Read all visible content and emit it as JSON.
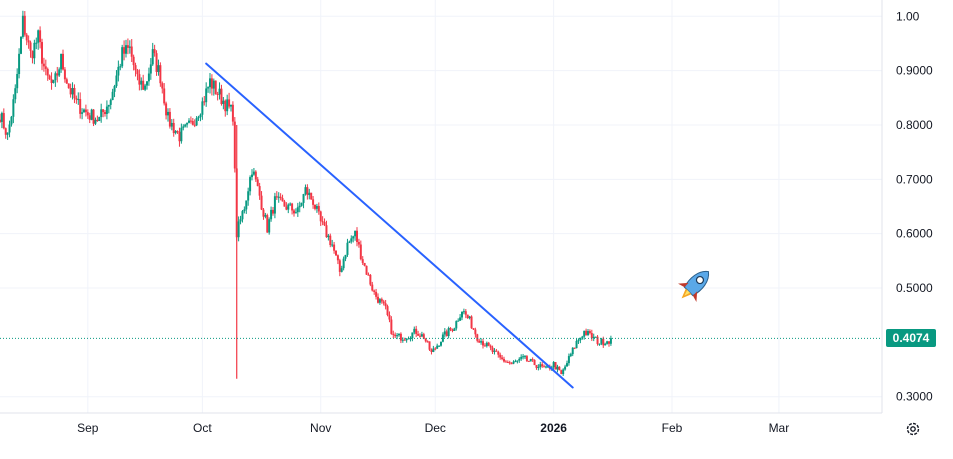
{
  "chart_data": {
    "type": "candlestick",
    "title": "",
    "y_ticks": [
      "1.00",
      "0.9000",
      "0.8000",
      "0.7000",
      "0.6000",
      "0.5000",
      "0.3000"
    ],
    "y_tick_values": [
      1.0,
      0.9,
      0.8,
      0.7,
      0.6,
      0.5,
      0.3
    ],
    "ylim": [
      0.27,
      1.03
    ],
    "x_ticks": [
      "Sep",
      "Oct",
      "Nov",
      "Dec",
      "2026",
      "Feb",
      "Mar"
    ],
    "x_tick_days": [
      31,
      61,
      92,
      122,
      153,
      184,
      212
    ],
    "xlim_days": [
      8,
      239
    ],
    "last_price": 0.4074,
    "last_price_label": "0.4074",
    "trendline": {
      "start": {
        "day": 62,
        "value": 0.913
      },
      "end": {
        "day": 158,
        "value": 0.317
      }
    },
    "key_points": [
      [
        8,
        0.82
      ],
      [
        10,
        0.78
      ],
      [
        12,
        0.86
      ],
      [
        14,
        0.99
      ],
      [
        16,
        0.93
      ],
      [
        18,
        0.96
      ],
      [
        20,
        0.89
      ],
      [
        22,
        0.87
      ],
      [
        24,
        0.92
      ],
      [
        26,
        0.87
      ],
      [
        28,
        0.84
      ],
      [
        31,
        0.82
      ],
      [
        34,
        0.81
      ],
      [
        37,
        0.85
      ],
      [
        40,
        0.93
      ],
      [
        42,
        0.94
      ],
      [
        44,
        0.88
      ],
      [
        46,
        0.87
      ],
      [
        48,
        0.93
      ],
      [
        50,
        0.89
      ],
      [
        52,
        0.81
      ],
      [
        55,
        0.78
      ],
      [
        58,
        0.8
      ],
      [
        61,
        0.84
      ],
      [
        63,
        0.88
      ],
      [
        65,
        0.86
      ],
      [
        67,
        0.84
      ],
      [
        69,
        0.82
      ],
      [
        70,
        0.6
      ],
      [
        72,
        0.65
      ],
      [
        74,
        0.72
      ],
      [
        76,
        0.67
      ],
      [
        78,
        0.61
      ],
      [
        80,
        0.66
      ],
      [
        83,
        0.65
      ],
      [
        86,
        0.64
      ],
      [
        88,
        0.68
      ],
      [
        90,
        0.66
      ],
      [
        92,
        0.62
      ],
      [
        95,
        0.58
      ],
      [
        97,
        0.53
      ],
      [
        99,
        0.58
      ],
      [
        101,
        0.6
      ],
      [
        103,
        0.55
      ],
      [
        106,
        0.49
      ],
      [
        109,
        0.46
      ],
      [
        111,
        0.41
      ],
      [
        114,
        0.41
      ],
      [
        117,
        0.42
      ],
      [
        119,
        0.41
      ],
      [
        121,
        0.38
      ],
      [
        124,
        0.41
      ],
      [
        127,
        0.43
      ],
      [
        129,
        0.46
      ],
      [
        131,
        0.44
      ],
      [
        133,
        0.41
      ],
      [
        136,
        0.39
      ],
      [
        139,
        0.37
      ],
      [
        142,
        0.36
      ],
      [
        145,
        0.37
      ],
      [
        148,
        0.36
      ],
      [
        151,
        0.35
      ],
      [
        153,
        0.36
      ],
      [
        155,
        0.34
      ],
      [
        157,
        0.37
      ],
      [
        159,
        0.4
      ],
      [
        161,
        0.42
      ],
      [
        163,
        0.41
      ],
      [
        165,
        0.4
      ],
      [
        168,
        0.405
      ]
    ]
  },
  "ui": {
    "price_tag": "0.4074",
    "settings_icon": "gear-icon",
    "annotation_icon": "rocket-icon",
    "colors": {
      "up": "#089981",
      "down": "#f23645",
      "trendline": "#2962ff",
      "grid": "#f0f3fa",
      "axis_text": "#131722",
      "price_line": "#089981"
    }
  }
}
